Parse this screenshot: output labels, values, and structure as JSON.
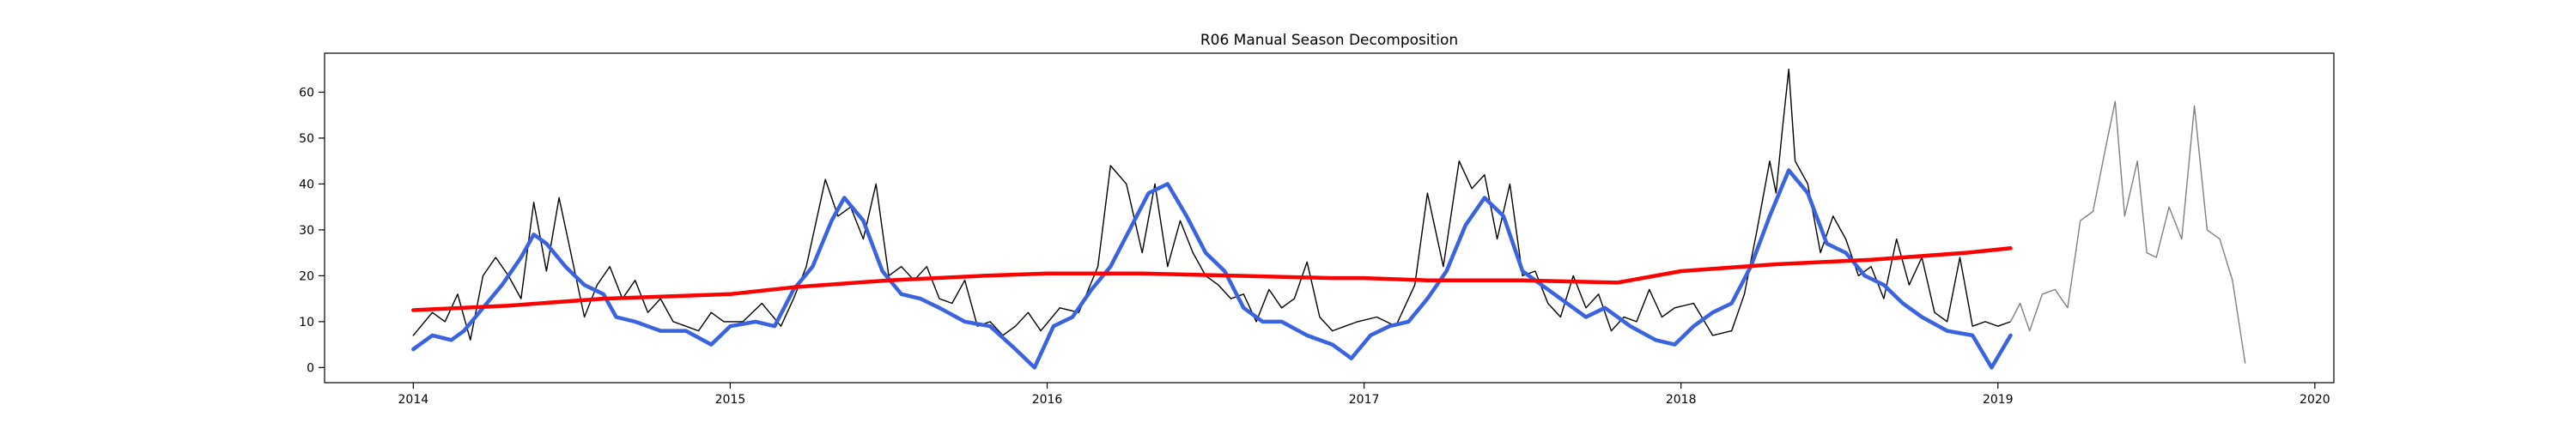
{
  "chart_data": {
    "type": "line",
    "title": "R06 Manual Season Decomposition",
    "xlabel": "",
    "ylabel": "",
    "x_ticks": [
      "2014",
      "2015",
      "2016",
      "2017",
      "2018",
      "2019",
      "2020"
    ],
    "y_ticks": [
      0,
      10,
      20,
      30,
      40,
      50,
      60
    ],
    "xlim": [
      2013.72,
      2020.06
    ],
    "ylim": [
      -3.3,
      68.5
    ],
    "grid": false,
    "legend": "none",
    "series": [
      {
        "color": "#000000",
        "style": "thin",
        "x": [
          2014.0,
          2014.06,
          2014.1,
          2014.14,
          2014.18,
          2014.22,
          2014.26,
          2014.3,
          2014.34,
          2014.38,
          2014.42,
          2014.46,
          2014.5,
          2014.54,
          2014.58,
          2014.62,
          2014.66,
          2014.7,
          2014.74,
          2014.78,
          2014.82,
          2014.86,
          2014.9,
          2014.94,
          2014.98,
          2015.04,
          2015.1,
          2015.16,
          2015.2,
          2015.24,
          2015.3,
          2015.34,
          2015.38,
          2015.42,
          2015.46,
          2015.5,
          2015.54,
          2015.58,
          2015.62,
          2015.66,
          2015.7,
          2015.74,
          2015.78,
          2015.82,
          2015.86,
          2015.9,
          2015.94,
          2015.98,
          2016.04,
          2016.1,
          2016.16,
          2016.2,
          2016.25,
          2016.3,
          2016.34,
          2016.38,
          2016.42,
          2016.46,
          2016.5,
          2016.54,
          2016.58,
          2016.62,
          2016.66,
          2016.7,
          2016.74,
          2016.78,
          2016.82,
          2016.86,
          2016.9,
          2016.94,
          2016.98,
          2017.04,
          2017.1,
          2017.16,
          2017.2,
          2017.25,
          2017.3,
          2017.34,
          2017.38,
          2017.42,
          2017.46,
          2017.5,
          2017.54,
          2017.58,
          2017.62,
          2017.66,
          2017.7,
          2017.74,
          2017.78,
          2017.82,
          2017.86,
          2017.9,
          2017.94,
          2017.98,
          2018.04,
          2018.1,
          2018.16,
          2018.2,
          2018.24,
          2018.28,
          2018.3,
          2018.32,
          2018.34,
          2018.36,
          2018.4,
          2018.44,
          2018.48,
          2018.52,
          2018.56,
          2018.6,
          2018.64,
          2018.68,
          2018.72,
          2018.76,
          2018.8,
          2018.84,
          2018.88,
          2018.92,
          2018.96,
          2019.0,
          2019.04
        ],
        "y": [
          7,
          12,
          10,
          16,
          6,
          20,
          24,
          20,
          15,
          36,
          21,
          37,
          24,
          11,
          18,
          22,
          15,
          19,
          12,
          15,
          10,
          9,
          8,
          12,
          10,
          10,
          14,
          9,
          15,
          22,
          41,
          33,
          35,
          28,
          40,
          20,
          22,
          19,
          22,
          15,
          14,
          19,
          9,
          10,
          7,
          9,
          12,
          8,
          13,
          12,
          22,
          44,
          40,
          25,
          40,
          22,
          32,
          25,
          20,
          18,
          15,
          16,
          10,
          17,
          13,
          15,
          23,
          11,
          8,
          9,
          10,
          11,
          9,
          18,
          38,
          22,
          45,
          39,
          42,
          28,
          40,
          20,
          21,
          14,
          11,
          20,
          13,
          16,
          8,
          11,
          10,
          17,
          11,
          13,
          14,
          7,
          8,
          16,
          30,
          45,
          38,
          52,
          65,
          45,
          40,
          25,
          33,
          28,
          20,
          22,
          15,
          28,
          18,
          24,
          12,
          10,
          24,
          9,
          10,
          9,
          10
        ]
      },
      {
        "color": "#808080",
        "style": "thin",
        "x": [
          2019.04,
          2019.07,
          2019.1,
          2019.14,
          2019.18,
          2019.22,
          2019.26,
          2019.3,
          2019.34,
          2019.37,
          2019.4,
          2019.44,
          2019.47,
          2019.5,
          2019.54,
          2019.58,
          2019.62,
          2019.66,
          2019.7,
          2019.74,
          2019.78
        ],
        "y": [
          10,
          14,
          8,
          16,
          17,
          13,
          32,
          34,
          48,
          58,
          33,
          45,
          25,
          24,
          35,
          28,
          57,
          30,
          28,
          19,
          1
        ]
      },
      {
        "color": "#3a63e0",
        "style": "thick",
        "x": [
          2014.0,
          2014.06,
          2014.12,
          2014.16,
          2014.22,
          2014.28,
          2014.34,
          2014.38,
          2014.42,
          2014.48,
          2014.54,
          2014.6,
          2014.64,
          2014.7,
          2014.78,
          2014.86,
          2014.94,
          2015.0,
          2015.08,
          2015.14,
          2015.2,
          2015.26,
          2015.32,
          2015.36,
          2015.42,
          2015.48,
          2015.54,
          2015.6,
          2015.66,
          2015.74,
          2015.82,
          2015.9,
          2015.96,
          2016.02,
          2016.08,
          2016.14,
          2016.2,
          2016.26,
          2016.32,
          2016.38,
          2016.44,
          2016.5,
          2016.56,
          2016.62,
          2016.68,
          2016.74,
          2016.82,
          2016.9,
          2016.96,
          2017.02,
          2017.08,
          2017.14,
          2017.2,
          2017.26,
          2017.32,
          2017.38,
          2017.44,
          2017.5,
          2017.56,
          2017.62,
          2017.7,
          2017.76,
          2017.84,
          2017.92,
          2017.98,
          2018.04,
          2018.1,
          2018.16,
          2018.22,
          2018.28,
          2018.34,
          2018.4,
          2018.46,
          2018.52,
          2018.58,
          2018.64,
          2018.7,
          2018.76,
          2018.84,
          2018.92,
          2018.98,
          2019.04
        ],
        "y": [
          4,
          7,
          6,
          8,
          13,
          18,
          24,
          29,
          27,
          22,
          18,
          16,
          11,
          10,
          8,
          8,
          5,
          9,
          10,
          9,
          17,
          22,
          32,
          37,
          32,
          21,
          16,
          15,
          13,
          10,
          9,
          4,
          0,
          9,
          11,
          17,
          22,
          30,
          38,
          40,
          33,
          25,
          21,
          13,
          10,
          10,
          7,
          5,
          2,
          7,
          9,
          10,
          15,
          21,
          31,
          37,
          33,
          21,
          18,
          15,
          11,
          13,
          9,
          6,
          5,
          9,
          12,
          14,
          22,
          33,
          43,
          38,
          27,
          25,
          20,
          18,
          14,
          11,
          8,
          7,
          0,
          7
        ]
      },
      {
        "color": "#ff0000",
        "style": "thick",
        "x": [
          2014.0,
          2014.3,
          2014.6,
          2014.8,
          2015.0,
          2015.2,
          2015.5,
          2015.8,
          2016.0,
          2016.3,
          2016.6,
          2016.9,
          2017.0,
          2017.2,
          2017.5,
          2017.8,
          2018.0,
          2018.3,
          2018.6,
          2018.9,
          2019.04
        ],
        "y": [
          12.5,
          13.5,
          15,
          15.5,
          16,
          17.5,
          19,
          20,
          20.5,
          20.5,
          20,
          19.5,
          19.5,
          19,
          19,
          18.5,
          21,
          22.5,
          23.5,
          25,
          26
        ]
      }
    ]
  }
}
